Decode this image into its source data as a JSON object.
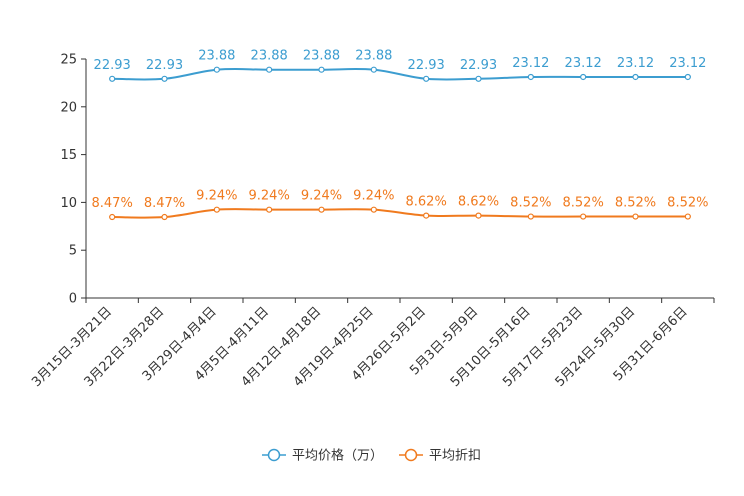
{
  "chart_data": {
    "type": "line",
    "title": "",
    "xlabel": "",
    "ylabel": "",
    "ylim": [
      0,
      25
    ],
    "yticks": [
      0,
      5,
      10,
      15,
      20,
      25
    ],
    "categories": [
      "3月15日-3月21日",
      "3月22日-3月28日",
      "3月29日-4月4日",
      "4月5日-4月11日",
      "4月12日-4月18日",
      "4月19日-4月25日",
      "4月26日-5月2日",
      "5月3日-5月9日",
      "5月10日-5月16日",
      "5月17日-5月23日",
      "5月24日-5月30日",
      "5月31日-6月6日"
    ],
    "series": [
      {
        "name": "平均价格（万）",
        "color": "#3c9dd0",
        "values": [
          22.93,
          22.93,
          23.88,
          23.88,
          23.88,
          23.88,
          22.93,
          22.93,
          23.12,
          23.12,
          23.12,
          23.12
        ],
        "labels": [
          "22.93",
          "22.93",
          "23.88",
          "23.88",
          "23.88",
          "23.88",
          "22.93",
          "22.93",
          "23.12",
          "23.12",
          "23.12",
          "23.12"
        ]
      },
      {
        "name": "平均折扣",
        "color": "#f07a1e",
        "values": [
          8.47,
          8.47,
          9.24,
          9.24,
          9.24,
          9.24,
          8.62,
          8.62,
          8.52,
          8.52,
          8.52,
          8.52
        ],
        "labels": [
          "8.47%",
          "8.47%",
          "9.24%",
          "9.24%",
          "9.24%",
          "9.24%",
          "8.62%",
          "8.62%",
          "8.52%",
          "8.52%",
          "8.52%",
          "8.52%"
        ]
      }
    ],
    "legend": "bottom-center",
    "grid": false
  }
}
